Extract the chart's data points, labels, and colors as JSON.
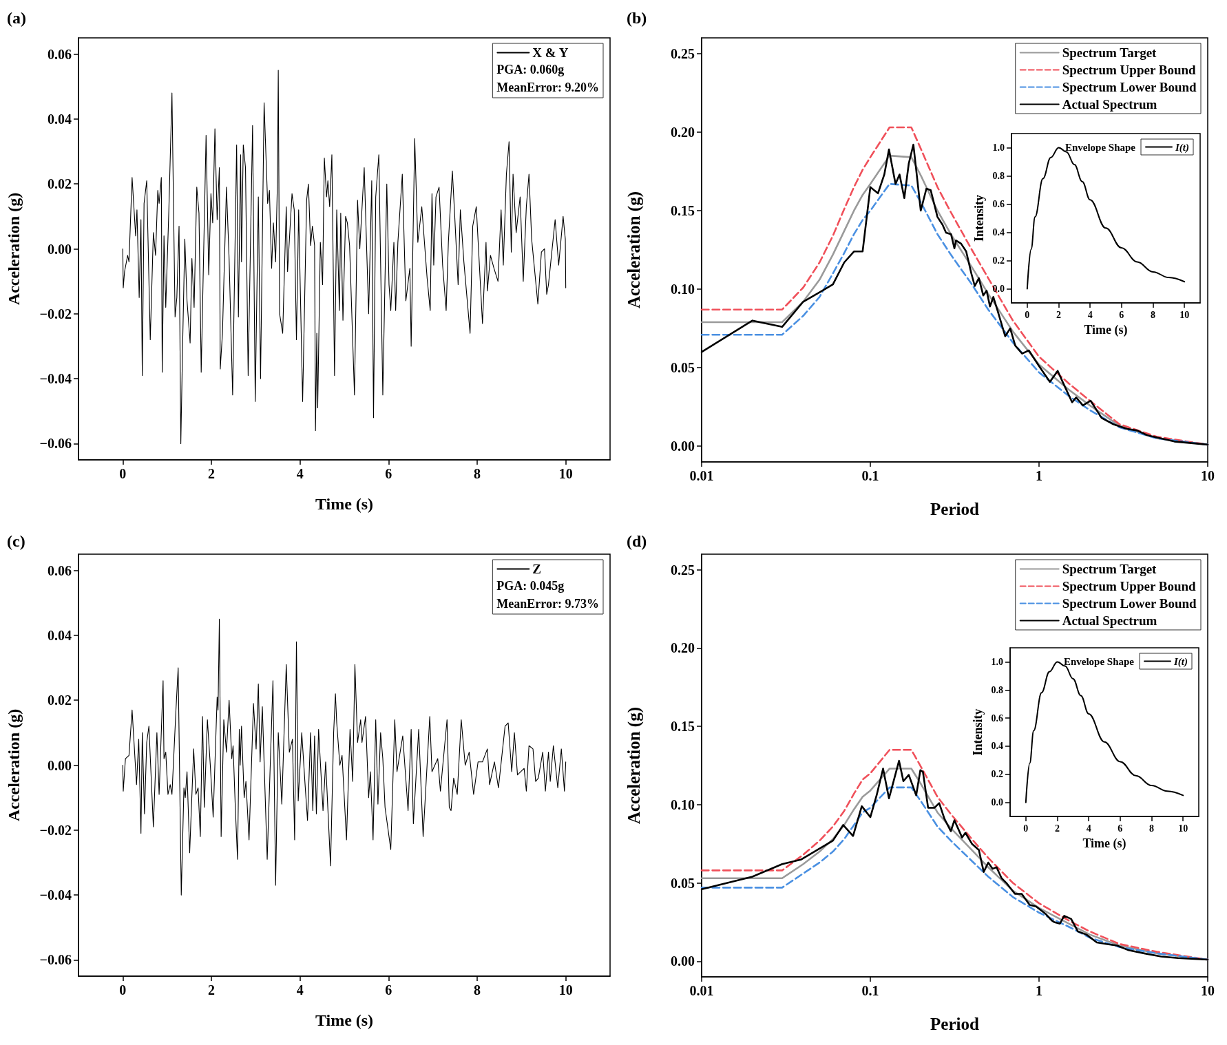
{
  "chart_data": [
    {
      "type": "line",
      "title": "(a)",
      "xlabel": "Time (s)",
      "ylabel": "Acceleration (g)",
      "xlim": [
        -1,
        11
      ],
      "xticks": [
        0,
        2,
        4,
        6,
        8,
        10
      ],
      "ylim": [
        -0.065,
        0.065
      ],
      "yticks": [
        {
          "value": -0.06,
          "label": "−0.06"
        },
        {
          "value": -0.04,
          "label": "−0.04"
        },
        {
          "value": -0.02,
          "label": "−0.02"
        },
        {
          "value": 0,
          "label": "0.00"
        },
        {
          "value": 0.02,
          "label": "0.02"
        },
        {
          "value": 0.04,
          "label": "0.04"
        },
        {
          "value": 0.06,
          "label": "0.06"
        }
      ],
      "legend": "top right",
      "marker": "none",
      "annotations": [
        "PGA: 0.060g",
        "MeanError: 9.20%"
      ],
      "series": [
        {
          "name": "X & Y",
          "color": "#000000",
          "x": [
            0,
            0.01,
            0.04,
            0.11,
            0.14,
            0.21,
            0.29,
            0.32,
            0.37,
            0.41,
            0.44,
            0.48,
            0.54,
            0.62,
            0.69,
            0.74,
            0.79,
            0.82,
            0.87,
            0.89,
            0.93,
            0.97,
            1.04,
            1.11,
            1.18,
            1.22,
            1.27,
            1.31,
            1.35,
            1.4,
            1.45,
            1.52,
            1.56,
            1.61,
            1.67,
            1.72,
            1.77,
            1.88,
            1.94,
            1.99,
            2.03,
            2.08,
            2.13,
            2.18,
            2.2,
            2.25,
            2.34,
            2.4,
            2.48,
            2.57,
            2.61,
            2.66,
            2.68,
            2.72,
            2.77,
            2.83,
            2.93,
            2.99,
            3.06,
            3.11,
            3.19,
            3.27,
            3.31,
            3.36,
            3.4,
            3.45,
            3.49,
            3.51,
            3.54,
            3.61,
            3.69,
            3.72,
            3.82,
            3.87,
            3.92,
            3.97,
            4.06,
            4.15,
            4.19,
            4.24,
            4.28,
            4.33,
            4.35,
            4.38,
            4.4,
            4.46,
            4.51,
            4.55,
            4.6,
            4.63,
            4.67,
            4.72,
            4.78,
            4.83,
            4.89,
            4.92,
            4.97,
            5.03,
            5.07,
            5.12,
            5.23,
            5.3,
            5.35,
            5.45,
            5.55,
            5.62,
            5.66,
            5.71,
            5.78,
            5.87,
            5.96,
            6.01,
            6.05,
            6.12,
            6.16,
            6.21,
            6.31,
            6.39,
            6.48,
            6.51,
            6.59,
            6.66,
            6.75,
            6.87,
            6.94,
            6.98,
            7.02,
            7.07,
            7.14,
            7.22,
            7.3,
            7.35,
            7.44,
            7.49,
            7.57,
            7.62,
            7.7,
            7.84,
            7.9,
            7.98,
            8.12,
            8.2,
            8.23,
            8.3,
            8.38,
            8.47,
            8.54,
            8.59,
            8.66,
            8.72,
            8.77,
            8.81,
            8.88,
            8.97,
            9.04,
            9.11,
            9.17,
            9.23,
            9.37,
            9.45,
            9.52,
            9.57,
            9.61,
            9.76,
            9.84,
            9.94,
            9.99,
            10
          ],
          "values": [
            0,
            -0.012,
            -0.007,
            -0.002,
            -0.004,
            0.022,
            0.004,
            0.012,
            -0.015,
            0.009,
            -0.039,
            0.014,
            0.021,
            -0.028,
            0.005,
            -0.002,
            0.018,
            0.014,
            0.022,
            -0.038,
            0.004,
            -0.018,
            0.012,
            0.048,
            -0.021,
            -0.015,
            0.007,
            -0.06,
            -0.03,
            0.003,
            -0.016,
            -0.029,
            -0.003,
            -0.018,
            0.019,
            0.011,
            -0.038,
            0.035,
            -0.008,
            0.017,
            0.008,
            0.037,
            0.009,
            0.025,
            -0.037,
            -0.026,
            0.019,
            -0.003,
            -0.045,
            0.032,
            -0.021,
            0.029,
            -0.004,
            0.032,
            0.025,
            -0.039,
            0.038,
            -0.047,
            0.016,
            -0.04,
            0.045,
            0.014,
            0.018,
            -0.006,
            0.008,
            -0.004,
            0.02,
            0.055,
            -0.02,
            -0.026,
            0.013,
            -0.007,
            0.017,
            0.012,
            -0.028,
            0.012,
            -0.047,
            0.015,
            0.02,
            0.001,
            0.007,
            0.001,
            -0.056,
            -0.026,
            -0.049,
            0.002,
            -0.011,
            0.028,
            0.016,
            0.021,
            0.013,
            0.029,
            -0.039,
            0.012,
            -0.019,
            0.011,
            -0.022,
            0.01,
            0.008,
            0.001,
            -0.045,
            0.015,
            0,
            0.025,
            -0.02,
            0.021,
            -0.052,
            0.016,
            0.029,
            -0.045,
            0.02,
            -0.011,
            -0.019,
            0.002,
            -0.019,
            0.002,
            0.023,
            -0.016,
            -0.006,
            -0.03,
            0.034,
            0.002,
            0.013,
            -0.009,
            -0.019,
            0.017,
            -0.005,
            0.016,
            0.019,
            -0.005,
            -0.019,
            0.002,
            0.024,
            0.011,
            -0.011,
            0.012,
            -0.004,
            -0.026,
            0.007,
            0.013,
            -0.023,
            0.002,
            -0.013,
            -0.002,
            -0.006,
            -0.01,
            0.012,
            -0.005,
            0.023,
            0.033,
            -0.001,
            0.023,
            0.005,
            0.016,
            -0.01,
            0.013,
            0.023,
            0.003,
            -0.017,
            -0.001,
            0,
            -0.014,
            -0.011,
            0.009,
            -0.005,
            0.01,
            0.003,
            -0.012
          ]
        }
      ]
    },
    {
      "type": "line",
      "title": "(b)",
      "xlabel": "Period",
      "ylabel": "Acceleration (g)",
      "log": "x",
      "xlim": [
        0.01,
        10
      ],
      "xticks": [
        0.01,
        0.1,
        1,
        10
      ],
      "ylim": [
        -0.01,
        0.26
      ],
      "yticks": [
        {
          "value": 0,
          "label": "0.00"
        },
        {
          "value": 0.05,
          "label": "0.05"
        },
        {
          "value": 0.1,
          "label": "0.10"
        },
        {
          "value": 0.15,
          "label": "0.15"
        },
        {
          "value": 0.2,
          "label": "0.20"
        },
        {
          "value": 0.25,
          "label": "0.25"
        }
      ],
      "legend": "top right",
      "marker": "none",
      "series": [
        {
          "name": "Spectrum Target",
          "color": "#9a9a9a",
          "x": [
            0.01,
            0.03,
            0.04,
            0.05,
            0.06,
            0.07,
            0.08,
            0.09,
            0.1,
            0.13,
            0.175,
            0.2,
            0.25,
            0.3,
            0.4,
            0.5,
            0.7,
            1,
            1.5,
            2,
            3,
            5,
            10
          ],
          "values": [
            0.079,
            0.079,
            0.092,
            0.106,
            0.122,
            0.137,
            0.15,
            0.16,
            0.167,
            0.185,
            0.184,
            0.172,
            0.15,
            0.135,
            0.114,
            0.097,
            0.073,
            0.052,
            0.036,
            0.026,
            0.013,
            0.005,
            0.001
          ]
        },
        {
          "name": "Spectrum Upper Bound",
          "color": "#f0505a",
          "line_style": "dashed",
          "x": [
            0.01,
            0.03,
            0.04,
            0.05,
            0.06,
            0.07,
            0.08,
            0.09,
            0.1,
            0.13,
            0.175,
            0.2,
            0.25,
            0.3,
            0.4,
            0.5,
            0.7,
            1,
            1.5,
            2,
            3,
            5,
            10
          ],
          "values": [
            0.087,
            0.087,
            0.101,
            0.117,
            0.134,
            0.151,
            0.165,
            0.176,
            0.184,
            0.203,
            0.203,
            0.189,
            0.165,
            0.149,
            0.125,
            0.107,
            0.08,
            0.057,
            0.04,
            0.029,
            0.014,
            0.006,
            0.001
          ]
        },
        {
          "name": "Spectrum Lower Bound",
          "color": "#4a90e2",
          "line_style": "dashed",
          "x": [
            0.01,
            0.03,
            0.04,
            0.05,
            0.06,
            0.07,
            0.08,
            0.09,
            0.1,
            0.13,
            0.175,
            0.2,
            0.25,
            0.3,
            0.4,
            0.5,
            0.7,
            1,
            1.5,
            2,
            3,
            5,
            10
          ],
          "values": [
            0.071,
            0.071,
            0.083,
            0.095,
            0.11,
            0.123,
            0.135,
            0.144,
            0.15,
            0.167,
            0.166,
            0.155,
            0.135,
            0.122,
            0.103,
            0.087,
            0.066,
            0.047,
            0.032,
            0.023,
            0.012,
            0.005,
            0.001
          ]
        },
        {
          "name": "Actual Spectrum",
          "color": "#000000",
          "x": [
            0.01,
            0.02,
            0.03,
            0.04,
            0.05,
            0.06,
            0.07,
            0.08,
            0.09,
            0.1,
            0.111,
            0.121,
            0.129,
            0.141,
            0.149,
            0.159,
            0.169,
            0.18,
            0.199,
            0.215,
            0.228,
            0.25,
            0.268,
            0.281,
            0.301,
            0.315,
            0.322,
            0.345,
            0.37,
            0.397,
            0.416,
            0.44,
            0.467,
            0.489,
            0.512,
            0.536,
            0.569,
            0.63,
            0.675,
            0.723,
            0.794,
            0.87,
            1,
            1.16,
            1.29,
            1.38,
            1.57,
            1.66,
            1.82,
            2.02,
            2.35,
            2.76,
            3.32,
            3.82,
            4.38,
            5.27,
            6.34,
            7.97,
            10
          ],
          "values": [
            0.06,
            0.08,
            0.076,
            0.092,
            0.098,
            0.103,
            0.117,
            0.124,
            0.124,
            0.165,
            0.161,
            0.173,
            0.189,
            0.167,
            0.173,
            0.158,
            0.18,
            0.192,
            0.15,
            0.164,
            0.163,
            0.146,
            0.141,
            0.136,
            0.135,
            0.126,
            0.131,
            0.129,
            0.124,
            0.11,
            0.102,
            0.107,
            0.096,
            0.099,
            0.089,
            0.095,
            0.086,
            0.07,
            0.075,
            0.064,
            0.059,
            0.061,
            0.051,
            0.041,
            0.048,
            0.041,
            0.028,
            0.031,
            0.026,
            0.029,
            0.018,
            0.014,
            0.011,
            0.01,
            0.007,
            0.005,
            0.003,
            0.002,
            0.001
          ]
        }
      ]
    },
    {
      "type": "line",
      "title": "Envelope Shape",
      "xlabel": "Time (s)",
      "ylabel": "Intensity",
      "xlim": [
        -1,
        11
      ],
      "xticks": [
        0,
        2,
        4,
        6,
        8,
        10
      ],
      "ylim": [
        -0.1,
        1.1
      ],
      "yticks": [
        {
          "value": 0,
          "label": "0.0"
        },
        {
          "value": 0.2,
          "label": "0.2"
        },
        {
          "value": 0.4,
          "label": "0.4"
        },
        {
          "value": 0.6,
          "label": "0.6"
        },
        {
          "value": 0.8,
          "label": "0.8"
        },
        {
          "value": 1,
          "label": "1.0"
        }
      ],
      "legend": "top right",
      "marker": "none",
      "series": [
        {
          "name": "I(t)",
          "color": "#000000",
          "x": [
            0,
            0.25,
            0.5,
            1,
            1.5,
            2,
            2.5,
            3,
            3.5,
            4,
            5,
            6,
            7,
            8,
            9,
            10
          ],
          "values": [
            0,
            0.28,
            0.51,
            0.78,
            0.93,
            1,
            0.97,
            0.88,
            0.76,
            0.63,
            0.43,
            0.29,
            0.19,
            0.12,
            0.08,
            0.05
          ]
        }
      ]
    },
    {
      "type": "line",
      "title": "(c)",
      "xlabel": "Time (s)",
      "ylabel": "Acceleration (g)",
      "xlim": [
        -1,
        11
      ],
      "xticks": [
        0,
        2,
        4,
        6,
        8,
        10
      ],
      "ylim": [
        -0.065,
        0.065
      ],
      "yticks": [
        {
          "value": -0.06,
          "label": "−0.06"
        },
        {
          "value": -0.04,
          "label": "−0.04"
        },
        {
          "value": -0.02,
          "label": "−0.02"
        },
        {
          "value": 0,
          "label": "0.00"
        },
        {
          "value": 0.02,
          "label": "0.02"
        },
        {
          "value": 0.04,
          "label": "0.04"
        },
        {
          "value": 0.06,
          "label": "0.06"
        }
      ],
      "legend": "top right",
      "marker": "none",
      "annotations": [
        "PGA: 0.045g",
        "MeanError: 9.73%"
      ],
      "series": [
        {
          "name": "Z",
          "color": "#000000",
          "x": [
            0,
            0.01,
            0.06,
            0.14,
            0.21,
            0.31,
            0.36,
            0.41,
            0.44,
            0.49,
            0.54,
            0.59,
            0.69,
            0.77,
            0.82,
            0.91,
            0.93,
            0.97,
            1.02,
            1.07,
            1.11,
            1.2,
            1.25,
            1.32,
            1.38,
            1.41,
            1.45,
            1.51,
            1.6,
            1.65,
            1.7,
            1.75,
            1.8,
            1.84,
            1.91,
            1.98,
            2.04,
            2.13,
            2.15,
            2.18,
            2.22,
            2.28,
            2.34,
            2.4,
            2.46,
            2.49,
            2.54,
            2.59,
            2.63,
            2.65,
            2.68,
            2.74,
            2.78,
            2.85,
            2.95,
            3.01,
            3.06,
            3.1,
            3.15,
            3.26,
            3.39,
            3.45,
            3.51,
            3.59,
            3.69,
            3.76,
            3.83,
            3.88,
            3.92,
            3.96,
            4.04,
            4.12,
            4.17,
            4.24,
            4.29,
            4.33,
            4.37,
            4.42,
            4.52,
            4.58,
            4.69,
            4.76,
            4.8,
            4.83,
            4.9,
            4.95,
            5.05,
            5.13,
            5.19,
            5.24,
            5.3,
            5.37,
            5.4,
            5.48,
            5.55,
            5.59,
            5.65,
            5.71,
            5.76,
            5.82,
            5.87,
            5.92,
            6.05,
            6.14,
            6.19,
            6.32,
            6.44,
            6.51,
            6.56,
            6.68,
            6.78,
            6.93,
            6.98,
            7.11,
            7.17,
            7.32,
            7.37,
            7.41,
            7.47,
            7.55,
            7.64,
            7.73,
            7.82,
            7.92,
            8.02,
            8.12,
            8.23,
            8.28,
            8.39,
            8.48,
            8.63,
            8.7,
            8.78,
            8.84,
            8.91,
            9.06,
            9.11,
            9.17,
            9.26,
            9.32,
            9.38,
            9.48,
            9.54,
            9.61,
            9.65,
            9.72,
            9.82,
            9.9,
            9.97,
            10
          ],
          "values": [
            0,
            -0.008,
            0.002,
            0.003,
            0.017,
            -0.006,
            0.008,
            -0.021,
            0.01,
            -0.015,
            0.007,
            0.012,
            -0.019,
            0.01,
            -0.009,
            0.026,
            0.002,
            0.004,
            -0.009,
            -0.006,
            -0.009,
            0.017,
            0.03,
            -0.04,
            -0.007,
            -0.01,
            -0.002,
            -0.027,
            0.005,
            -0.009,
            -0.007,
            -0.022,
            0.015,
            -0.013,
            0.014,
            -0.001,
            -0.016,
            0.021,
            0.017,
            0.045,
            -0.022,
            0.014,
            0.004,
            0.02,
            0.002,
            0.006,
            -0.013,
            -0.029,
            0.011,
            0,
            0.012,
            -0.01,
            -0.005,
            -0.023,
            0.019,
            0.005,
            0.025,
            0.001,
            0.018,
            -0.029,
            0.026,
            -0.037,
            0.01,
            -0.012,
            0.031,
            0.004,
            0.008,
            -0.023,
            0.038,
            -0.011,
            0.01,
            -0.007,
            -0.017,
            0.01,
            -0.014,
            0.009,
            -0.015,
            0.011,
            -0.014,
            0.001,
            -0.031,
            0.01,
            0.022,
            0.013,
            0,
            0.003,
            -0.023,
            0.011,
            -0.005,
            0.031,
            0.007,
            0.014,
            0.007,
            0.015,
            -0.01,
            -0.002,
            -0.023,
            0.014,
            -0.012,
            0.01,
            0.002,
            -0.013,
            -0.026,
            0.014,
            -0.002,
            0.009,
            -0.014,
            0.011,
            -0.018,
            0.011,
            -0.022,
            0.015,
            -0.002,
            0.002,
            -0.008,
            0.014,
            -0.013,
            -0.014,
            -0.004,
            -0.009,
            0.014,
            0,
            0.004,
            -0.009,
            0.001,
            0.001,
            0.005,
            -0.006,
            0.001,
            -0.007,
            0.012,
            0.013,
            -0.002,
            0.01,
            -0.003,
            -0.001,
            -0.008,
            0.006,
            0.005,
            -0.005,
            -0.004,
            0.004,
            -0.008,
            0.004,
            -0.005,
            0.006,
            -0.007,
            0.005,
            -0.008,
            0.001
          ]
        }
      ]
    },
    {
      "type": "line",
      "title": "(d)",
      "xlabel": "Period",
      "ylabel": "Acceleration (g)",
      "log": "x",
      "xlim": [
        0.01,
        10
      ],
      "xticks": [
        0.01,
        0.1,
        1,
        10
      ],
      "ylim": [
        -0.01,
        0.26
      ],
      "yticks": [
        {
          "value": 0,
          "label": "0.00"
        },
        {
          "value": 0.05,
          "label": "0.05"
        },
        {
          "value": 0.1,
          "label": "0.10"
        },
        {
          "value": 0.15,
          "label": "0.15"
        },
        {
          "value": 0.2,
          "label": "0.20"
        },
        {
          "value": 0.25,
          "label": "0.25"
        }
      ],
      "legend": "top right",
      "marker": "none",
      "series": [
        {
          "name": "Spectrum Target",
          "color": "#9a9a9a",
          "x": [
            0.01,
            0.03,
            0.04,
            0.05,
            0.06,
            0.07,
            0.08,
            0.09,
            0.1,
            0.13,
            0.175,
            0.2,
            0.25,
            0.3,
            0.4,
            0.5,
            0.7,
            1,
            1.5,
            2,
            3,
            5,
            10
          ],
          "values": [
            0.053,
            0.053,
            0.062,
            0.07,
            0.078,
            0.087,
            0.097,
            0.105,
            0.109,
            0.123,
            0.123,
            0.113,
            0.095,
            0.085,
            0.071,
            0.06,
            0.045,
            0.034,
            0.024,
            0.017,
            0.01,
            0.005,
            0.001
          ]
        },
        {
          "name": "Spectrum Upper Bound",
          "color": "#f0505a",
          "line_style": "dashed",
          "x": [
            0.01,
            0.03,
            0.04,
            0.05,
            0.06,
            0.07,
            0.08,
            0.09,
            0.1,
            0.13,
            0.175,
            0.2,
            0.25,
            0.3,
            0.4,
            0.5,
            0.7,
            1,
            1.5,
            2,
            3,
            5,
            10
          ],
          "values": [
            0.058,
            0.058,
            0.068,
            0.077,
            0.086,
            0.096,
            0.107,
            0.116,
            0.12,
            0.135,
            0.135,
            0.124,
            0.105,
            0.094,
            0.078,
            0.066,
            0.05,
            0.037,
            0.026,
            0.019,
            0.011,
            0.006,
            0.001
          ]
        },
        {
          "name": "Spectrum Lower Bound",
          "color": "#4a90e2",
          "line_style": "dashed",
          "x": [
            0.01,
            0.03,
            0.04,
            0.05,
            0.06,
            0.07,
            0.08,
            0.09,
            0.1,
            0.13,
            0.175,
            0.2,
            0.25,
            0.3,
            0.4,
            0.5,
            0.7,
            1,
            1.5,
            2,
            3,
            5,
            10
          ],
          "values": [
            0.047,
            0.047,
            0.056,
            0.063,
            0.07,
            0.078,
            0.087,
            0.095,
            0.098,
            0.111,
            0.111,
            0.102,
            0.086,
            0.077,
            0.064,
            0.054,
            0.041,
            0.031,
            0.022,
            0.015,
            0.009,
            0.005,
            0.001
          ]
        },
        {
          "name": "Actual Spectrum",
          "color": "#000000",
          "x": [
            0.01,
            0.02,
            0.03,
            0.039,
            0.06,
            0.069,
            0.079,
            0.089,
            0.1,
            0.109,
            0.119,
            0.129,
            0.139,
            0.148,
            0.157,
            0.169,
            0.187,
            0.198,
            0.205,
            0.22,
            0.24,
            0.256,
            0.275,
            0.3,
            0.315,
            0.35,
            0.366,
            0.4,
            0.44,
            0.47,
            0.5,
            0.53,
            0.56,
            0.6,
            0.64,
            0.72,
            0.79,
            0.88,
            0.96,
            1.1,
            1.19,
            1.23,
            1.33,
            1.41,
            1.55,
            1.7,
            1.91,
            2.2,
            2.5,
            2.9,
            3.4,
            4.2,
            5.3,
            6.7,
            10
          ],
          "values": [
            0.046,
            0.054,
            0.062,
            0.065,
            0.077,
            0.087,
            0.08,
            0.099,
            0.092,
            0.106,
            0.123,
            0.104,
            0.117,
            0.128,
            0.115,
            0.119,
            0.106,
            0.122,
            0.121,
            0.098,
            0.098,
            0.101,
            0.091,
            0.083,
            0.09,
            0.079,
            0.082,
            0.075,
            0.071,
            0.057,
            0.063,
            0.059,
            0.06,
            0.053,
            0.05,
            0.043,
            0.043,
            0.036,
            0.035,
            0.03,
            0.026,
            0.025,
            0.024,
            0.029,
            0.027,
            0.019,
            0.017,
            0.012,
            0.011,
            0.01,
            0.007,
            0.005,
            0.003,
            0.002,
            0.001
          ]
        }
      ]
    },
    {
      "type": "line",
      "title": "Envelope Shape",
      "xlabel": "Time (s)",
      "ylabel": "Intensity",
      "xlim": [
        -1,
        11
      ],
      "xticks": [
        0,
        2,
        4,
        6,
        8,
        10
      ],
      "ylim": [
        -0.1,
        1.1
      ],
      "yticks": [
        {
          "value": 0,
          "label": "0.0"
        },
        {
          "value": 0.2,
          "label": "0.2"
        },
        {
          "value": 0.4,
          "label": "0.4"
        },
        {
          "value": 0.6,
          "label": "0.6"
        },
        {
          "value": 0.8,
          "label": "0.8"
        },
        {
          "value": 1,
          "label": "1.0"
        }
      ],
      "legend": "top right",
      "marker": "none",
      "series": [
        {
          "name": "I(t)",
          "color": "#000000",
          "x": [
            0,
            0.25,
            0.5,
            1,
            1.5,
            2,
            2.5,
            3,
            3.5,
            4,
            5,
            6,
            7,
            8,
            9,
            10
          ],
          "values": [
            0,
            0.28,
            0.51,
            0.78,
            0.93,
            1,
            0.97,
            0.88,
            0.76,
            0.63,
            0.43,
            0.29,
            0.19,
            0.12,
            0.08,
            0.05
          ]
        }
      ]
    }
  ]
}
